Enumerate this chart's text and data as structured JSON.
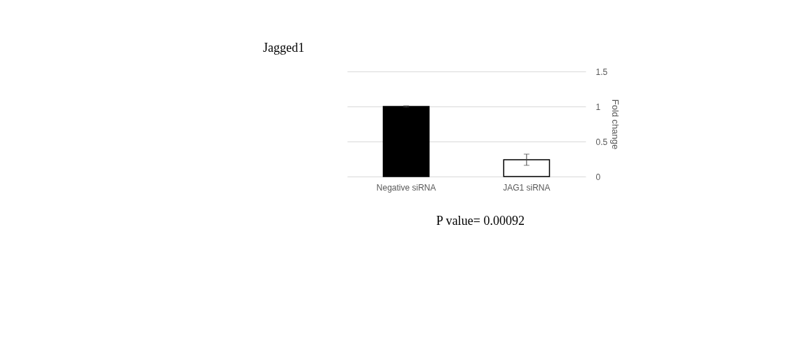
{
  "chart_data": {
    "type": "bar",
    "title": "Jagged1",
    "ylabel": "Fold change",
    "categories": [
      "Negative siRNA",
      "JAG1 siRNA"
    ],
    "values": [
      1.0,
      0.24
    ],
    "errors": [
      0.01,
      0.08
    ],
    "colors": [
      "#000000",
      "#ffffff"
    ],
    "ylim": [
      0,
      1.5
    ],
    "yticks": [
      0,
      0.5,
      1,
      1.5
    ],
    "grid": "y",
    "annotations": [
      "P value= 0.00092"
    ]
  }
}
